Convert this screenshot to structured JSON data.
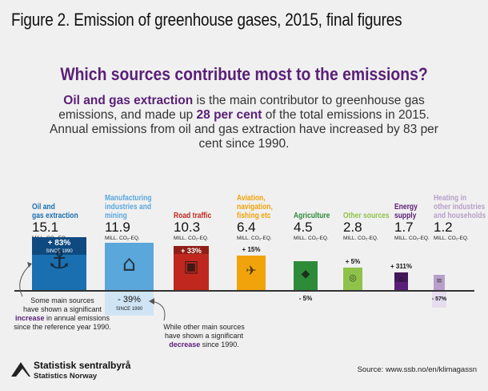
{
  "title": "Figure 2. Emission of greenhouse gases, 2015, final figures",
  "subtitle": "Which sources contribute most to the emissions?",
  "intro": {
    "p1_bold": "Oil and gas extraction",
    "p1_rest": " is the main contributor to greenhouse gas emissions, and made up ",
    "p1_pct": "28 per cent",
    "p1_end": " of the total emissions in 2015. Annual emissions from oil and gas extraction have increased by 83 per cent since 1990."
  },
  "chart_data": {
    "type": "bar",
    "unit_label": "MILL. CO₂-EQ.",
    "categories": [
      {
        "name": "Oil and gas extraction",
        "line1": "Oil and",
        "line2": "gas extraction",
        "line3": "",
        "value": 15.1,
        "change": "+ 83%",
        "change_pct": 83,
        "since": "SINCE 1990",
        "color": "#1a6fb0"
      },
      {
        "name": "Manufacturing industries and mining",
        "line1": "Manufacturing",
        "line2": "industries and",
        "line3": "mining",
        "value": 11.9,
        "change": "- 39%",
        "change_pct": -39,
        "since": "SINCE 1990",
        "color": "#5aa7dc"
      },
      {
        "name": "Road traffic",
        "line1": "Road traffic",
        "line2": "",
        "line3": "",
        "value": 10.3,
        "change": "+ 33%",
        "change_pct": 33,
        "since": "",
        "color": "#c0281f"
      },
      {
        "name": "Aviation, navigation, fishing etc",
        "line1": "Aviation,",
        "line2": "navigation,",
        "line3": "fishing etc",
        "value": 6.4,
        "change": "+ 15%",
        "change_pct": 15,
        "since": "",
        "color": "#f0a30a"
      },
      {
        "name": "Agriculture",
        "line1": "Agriculture",
        "line2": "",
        "line3": "",
        "value": 4.5,
        "change": "- 5%",
        "change_pct": -5,
        "since": "",
        "color": "#2e8b3a"
      },
      {
        "name": "Other sources",
        "line1": "Other sources",
        "line2": "",
        "line3": "",
        "value": 2.8,
        "change": "+ 5%",
        "change_pct": 5,
        "since": "",
        "color": "#8fc24a"
      },
      {
        "name": "Energy supply",
        "line1": "Energy",
        "line2": "supply",
        "line3": "",
        "value": 1.7,
        "change": "+ 311%",
        "change_pct": 311,
        "since": "",
        "color": "#5a2077"
      },
      {
        "name": "Heating in other industries and households",
        "line1": "Heating in",
        "line2": "other industries",
        "line3": "and households",
        "value": 1.2,
        "change": "- 57%",
        "change_pct": -57,
        "since": "",
        "color": "#b89fc9"
      }
    ]
  },
  "notes": {
    "left_1": "Some main sources",
    "left_2": "have shown a significant",
    "left_3_hl": "increase",
    "left_3_rest": " in annual emissions",
    "left_4": "since the reference year 1990.",
    "right_1": "While other main sources",
    "right_2": "have shown a significant",
    "right_3_hl": "decrease",
    "right_3_rest": " since 1990."
  },
  "footer": {
    "logo_name": "Statistisk sentralbyrå",
    "logo_sub": "Statistics Norway",
    "source": "Source: www.ssb.no/en/klimagassn"
  }
}
